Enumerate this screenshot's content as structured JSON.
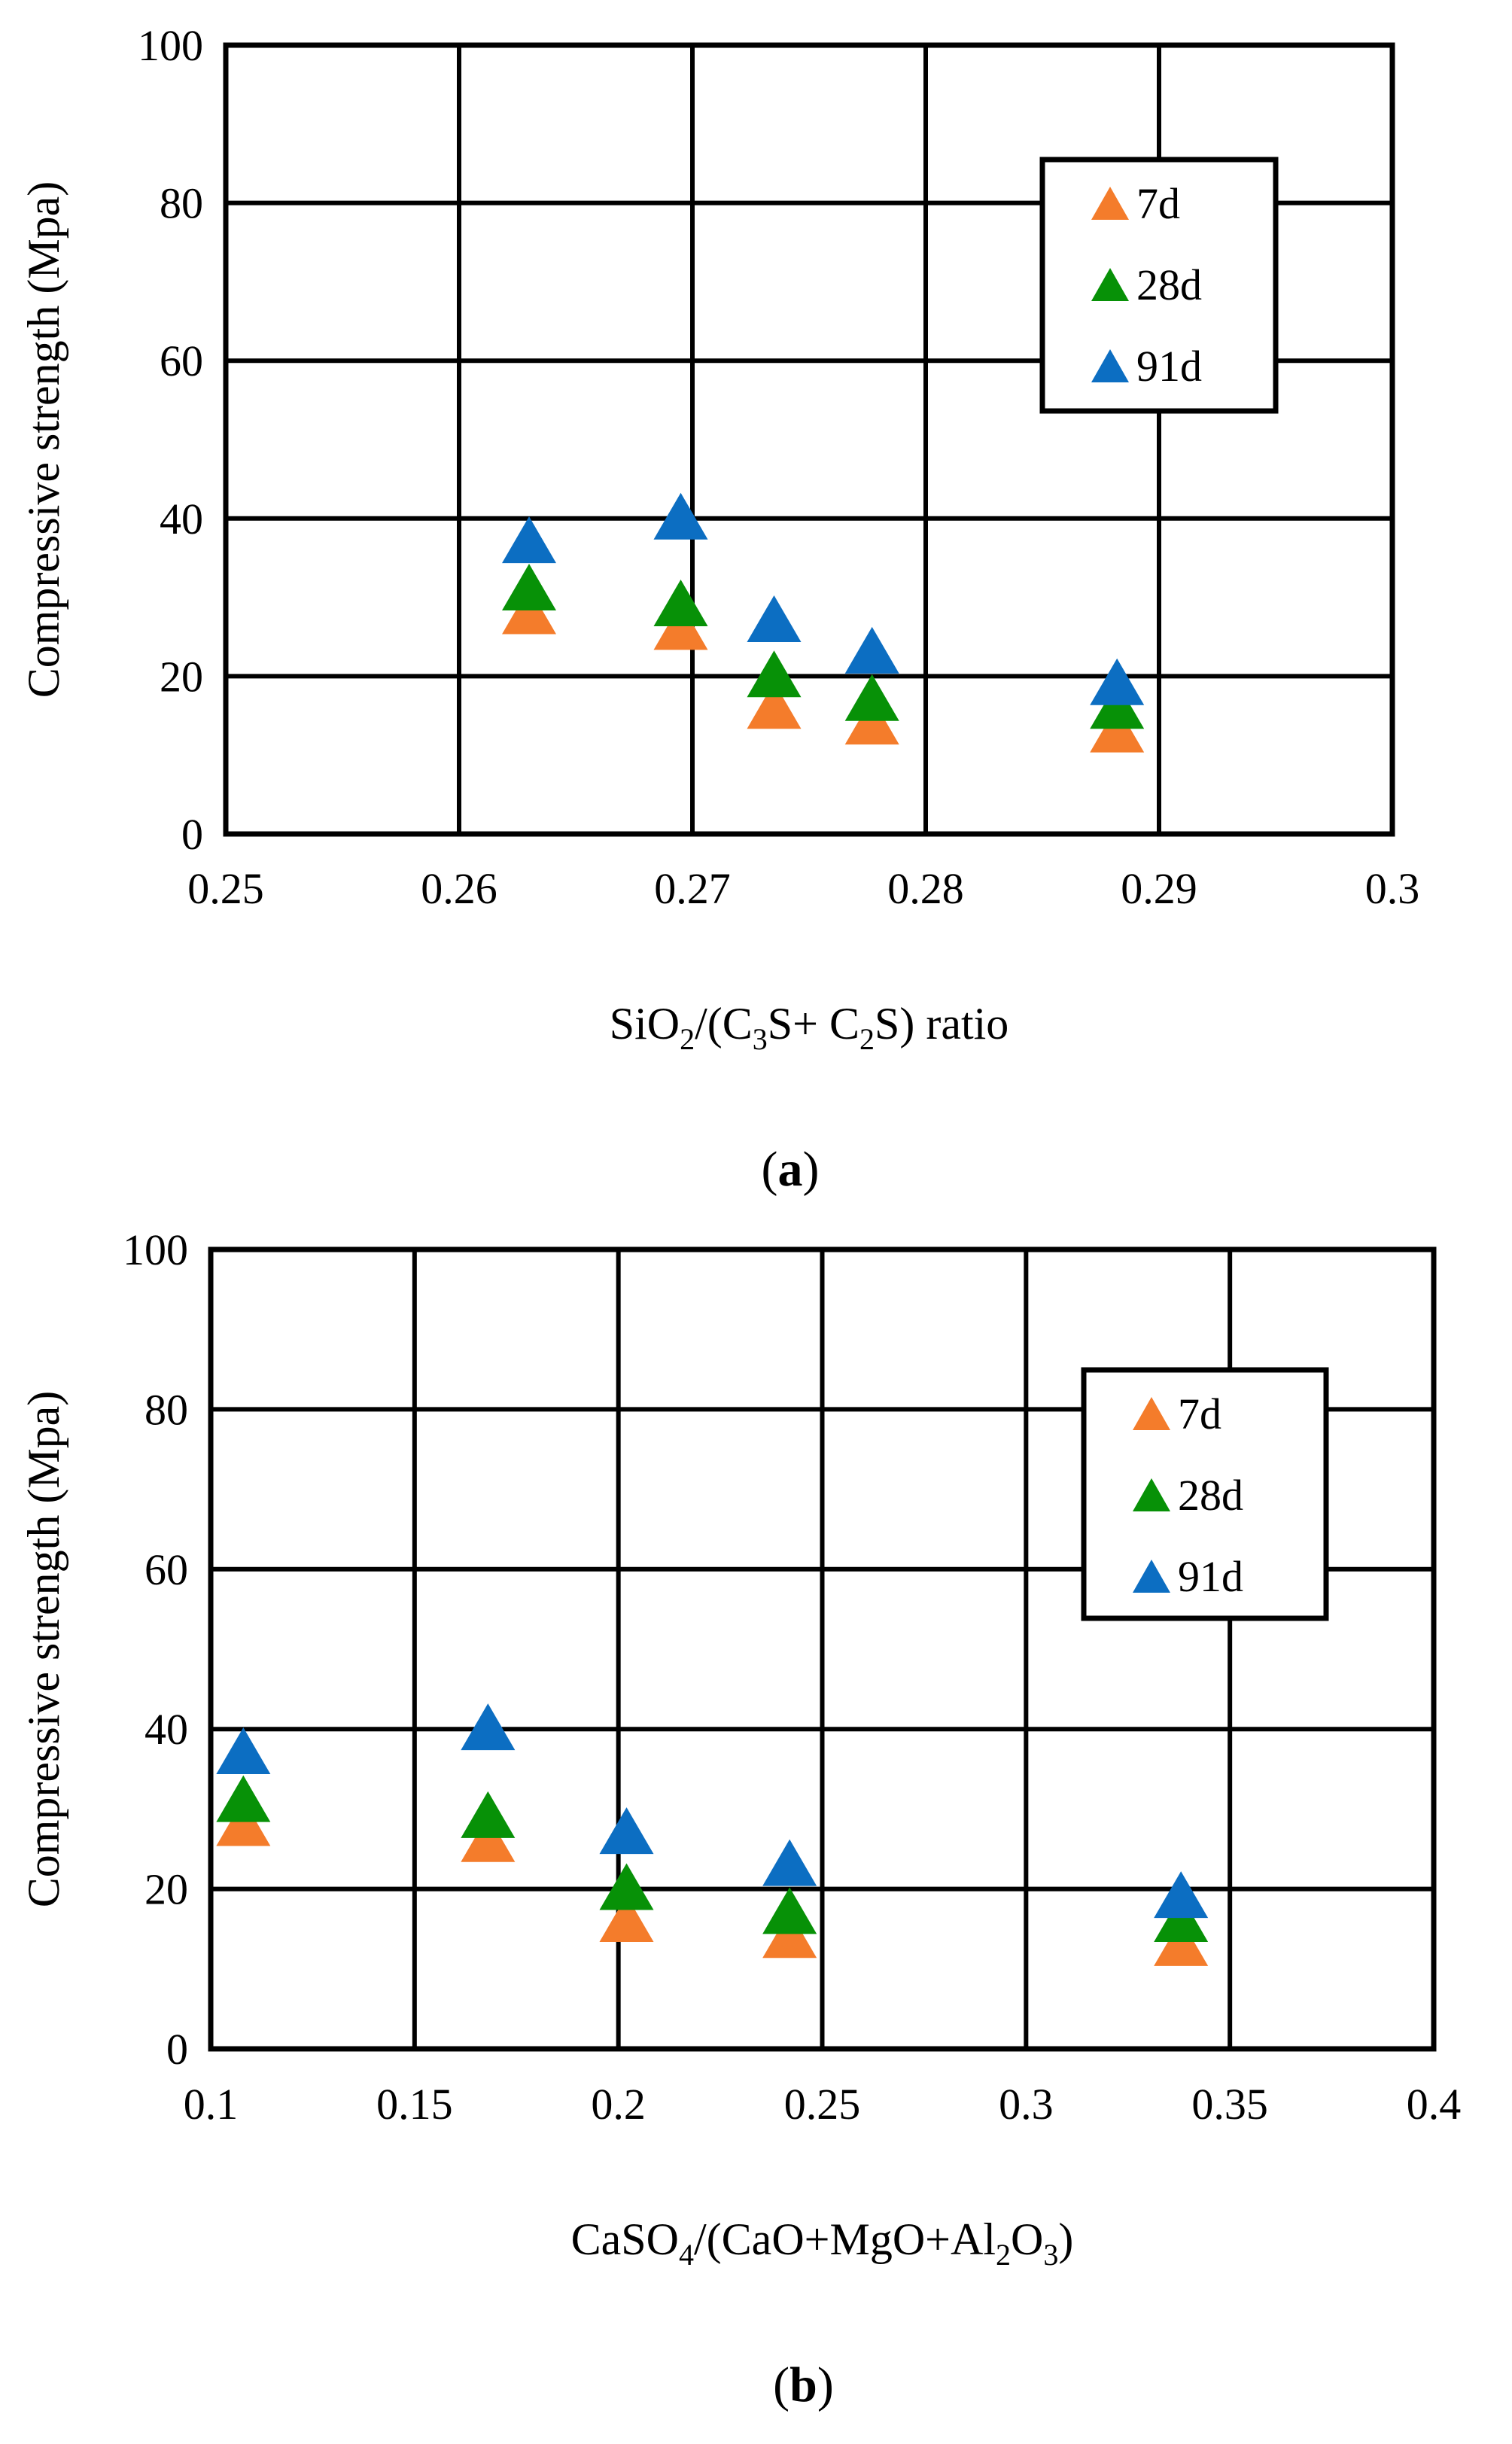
{
  "chart_data": [
    {
      "type": "scatter",
      "panel_label": "a",
      "xlabel": {
        "parts": [
          "SiO",
          "2",
          "/(C",
          "3",
          "S+ C",
          "2",
          "S) ratio"
        ],
        "text": "SiO2/(C3S+ C2S) ratio"
      },
      "ylabel": "Compressive strength (Mpa)",
      "xlim": [
        0.25,
        0.3
      ],
      "ylim": [
        0,
        100
      ],
      "x_ticks": [
        0.25,
        0.26,
        0.27,
        0.28,
        0.29,
        0.3
      ],
      "x_tick_labels": [
        "0.25",
        "0.26",
        "0.27",
        "0.28",
        "0.29",
        "0.3"
      ],
      "y_ticks": [
        0,
        20,
        40,
        60,
        80,
        100
      ],
      "y_tick_labels": [
        "0",
        "20",
        "40",
        "60",
        "80",
        "100"
      ],
      "grid": true,
      "legend_position": "top-right",
      "x": [
        0.263,
        0.2695,
        0.2735,
        0.2777,
        0.2882
      ],
      "series": [
        {
          "name": "7d",
          "color": "#F47C2B",
          "values": [
            28,
            26,
            16,
            14,
            13
          ]
        },
        {
          "name": "28d",
          "color": "#079107",
          "values": [
            31,
            29,
            20,
            17,
            16
          ]
        },
        {
          "name": "91d",
          "color": "#0C6EC2",
          "values": [
            37,
            40,
            27,
            23,
            19
          ]
        }
      ]
    },
    {
      "type": "scatter",
      "panel_label": "b",
      "xlabel": {
        "parts": [
          "CaSO",
          "4",
          "/(CaO+MgO+Al",
          "2",
          "O",
          "3",
          ")"
        ],
        "text": "CaSO4/(CaO+MgO+Al2O3)"
      },
      "ylabel": "Compressive strength (Mpa)",
      "xlim": [
        0.1,
        0.4
      ],
      "ylim": [
        0,
        100
      ],
      "x_ticks": [
        0.1,
        0.15,
        0.2,
        0.25,
        0.3,
        0.35,
        0.4
      ],
      "x_tick_labels": [
        "0.1",
        "0.15",
        "0.2",
        "0.25",
        "0.3",
        "0.35",
        "0.4"
      ],
      "y_ticks": [
        0,
        20,
        40,
        60,
        80,
        100
      ],
      "y_tick_labels": [
        "0",
        "20",
        "40",
        "60",
        "80",
        "100"
      ],
      "grid": true,
      "legend_position": "top-right",
      "x": [
        0.108,
        0.168,
        0.202,
        0.242,
        0.338
      ],
      "series": [
        {
          "name": "7d",
          "color": "#F47C2B",
          "values": [
            28,
            26,
            16,
            14,
            13
          ]
        },
        {
          "name": "28d",
          "color": "#079107",
          "values": [
            31,
            29,
            20,
            17,
            16
          ]
        },
        {
          "name": "91d",
          "color": "#0C6EC2",
          "values": [
            37,
            40,
            27,
            23,
            19
          ]
        }
      ]
    }
  ]
}
